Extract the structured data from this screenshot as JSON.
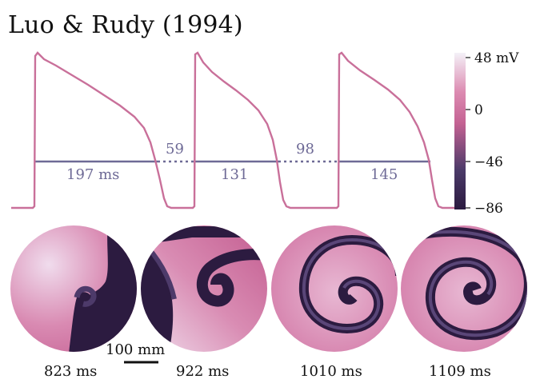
{
  "title": "Luo & Rudy (1994)",
  "colors": {
    "trace": "#c9709a",
    "apd_line": "#6e6a96",
    "cmap": [
      "#2b1a3f",
      "#4b3a68",
      "#b3528a",
      "#d97fa8",
      "#f1eef7"
    ]
  },
  "colorbar": {
    "ticks": [
      {
        "value": 48,
        "label": "48 mV"
      },
      {
        "value": 0,
        "label": "0"
      },
      {
        "value": -46,
        "label": "−46"
      },
      {
        "value": -86,
        "label": "−86"
      }
    ],
    "range": [
      -86,
      48
    ]
  },
  "apd_labels": {
    "apd1": "197 ms",
    "di1": "59",
    "apd2": "131",
    "di2": "98",
    "apd3": "145"
  },
  "snapshots": [
    {
      "time_label": "823 ms"
    },
    {
      "time_label": "922 ms"
    },
    {
      "time_label": "1010 ms"
    },
    {
      "time_label": "1109 ms"
    }
  ],
  "scale_bar": {
    "label": "100 mm"
  }
}
